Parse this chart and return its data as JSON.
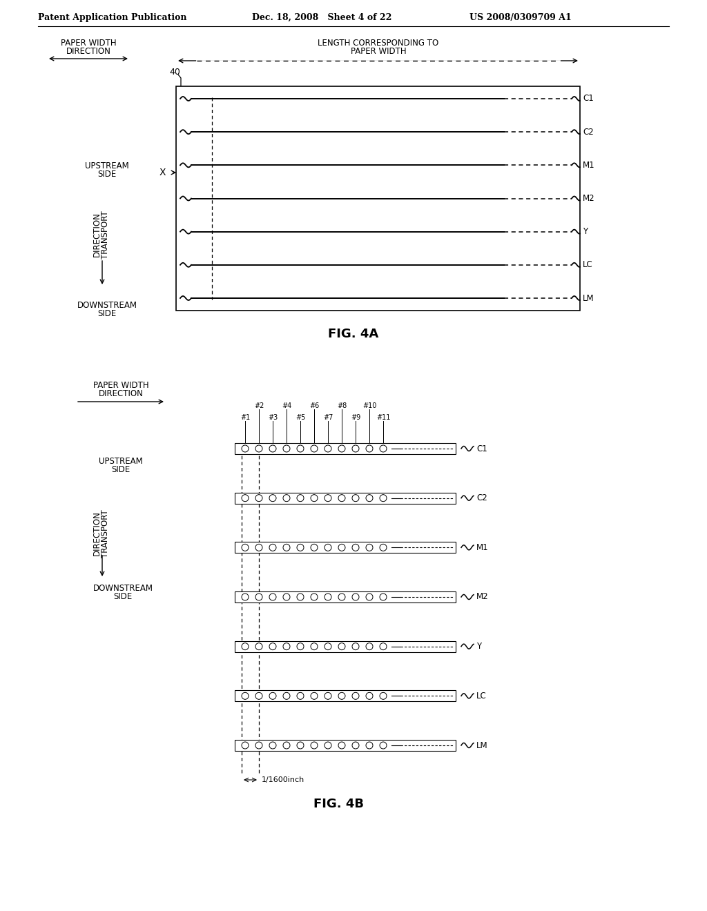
{
  "bg_color": "#ffffff",
  "channels": [
    "C1",
    "C2",
    "M1",
    "M2",
    "Y",
    "LC",
    "LM"
  ],
  "nozzle_upper": [
    "#2",
    "#4",
    "#6",
    "#8",
    "#10"
  ],
  "nozzle_lower": [
    "#1",
    "#3",
    "#5",
    "#7",
    "#9",
    "#11"
  ]
}
